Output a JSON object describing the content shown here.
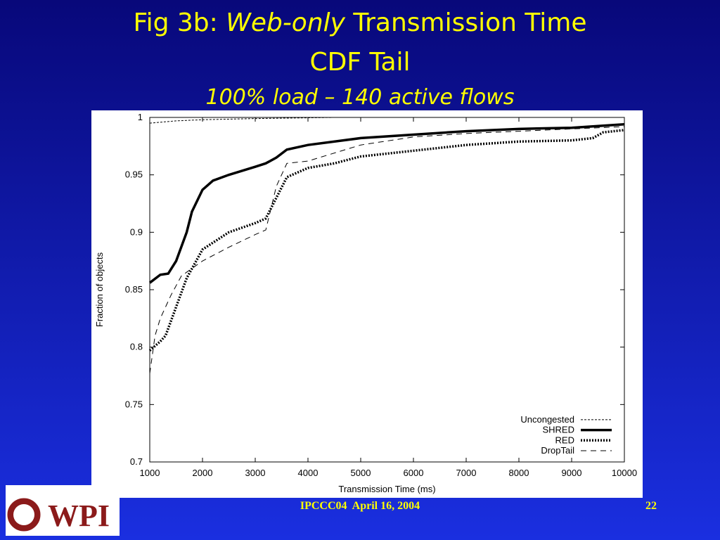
{
  "slide": {
    "title": [
      "Fig 3b:",
      "Web-only",
      "Transmission Time"
    ],
    "title_line2": "CDF Tail",
    "subtitle": "100% load – 140 active flows",
    "footer": "IPCCC04  April 16, 2004",
    "page_number": "22",
    "logo": "WPI"
  },
  "chart_data": {
    "type": "line",
    "xlabel": "Transmission Time (ms)",
    "ylabel": "Fraction of objects",
    "xlim": [
      1000,
      10000
    ],
    "ylim": [
      0.7,
      1
    ],
    "xticks": [
      1000,
      2000,
      3000,
      4000,
      5000,
      6000,
      7000,
      8000,
      9000,
      10000
    ],
    "yticks": [
      0.7,
      0.75,
      0.8,
      0.85,
      0.9,
      0.95,
      1
    ],
    "legend": "bottom-right",
    "series": [
      {
        "name": "Uncongested",
        "color": "#000000",
        "style": "thin-dashed",
        "x": [
          1000,
          1500,
          2000,
          3000,
          4500
        ],
        "values": [
          0.995,
          0.997,
          0.998,
          0.999,
          1
        ]
      },
      {
        "name": "SHRED",
        "color": "#000000",
        "style": "thick",
        "x": [
          1000,
          1200,
          1350,
          1500,
          1700,
          1800,
          2000,
          2200,
          2500,
          3000,
          3200,
          3400,
          3600,
          4000,
          5000,
          6000,
          7000,
          8000,
          9000,
          10000
        ],
        "values": [
          0.856,
          0.863,
          0.864,
          0.875,
          0.9,
          0.918,
          0.937,
          0.945,
          0.95,
          0.957,
          0.96,
          0.965,
          0.972,
          0.976,
          0.982,
          0.985,
          0.988,
          0.99,
          0.991,
          0.994
        ]
      },
      {
        "name": "RED",
        "color": "#000000",
        "style": "thick-dotted",
        "x": [
          1000,
          1200,
          1300,
          1500,
          1700,
          2000,
          2500,
          3000,
          3200,
          3400,
          3600,
          4000,
          4500,
          5000,
          6000,
          7000,
          8000,
          9000,
          9400,
          9600,
          10000
        ],
        "values": [
          0.797,
          0.805,
          0.81,
          0.835,
          0.86,
          0.885,
          0.9,
          0.908,
          0.912,
          0.93,
          0.948,
          0.956,
          0.96,
          0.966,
          0.971,
          0.976,
          0.979,
          0.98,
          0.982,
          0.987,
          0.989
        ]
      },
      {
        "name": "DropTail",
        "color": "#000000",
        "style": "dashed",
        "x": [
          1000,
          1100,
          1200,
          1400,
          1600,
          2000,
          2500,
          3000,
          3200,
          3400,
          3600,
          4000,
          5000,
          6000,
          7000,
          8000,
          9000,
          10000
        ],
        "values": [
          0.777,
          0.81,
          0.825,
          0.845,
          0.862,
          0.875,
          0.887,
          0.898,
          0.902,
          0.94,
          0.96,
          0.962,
          0.976,
          0.983,
          0.986,
          0.988,
          0.99,
          0.992
        ]
      }
    ]
  }
}
